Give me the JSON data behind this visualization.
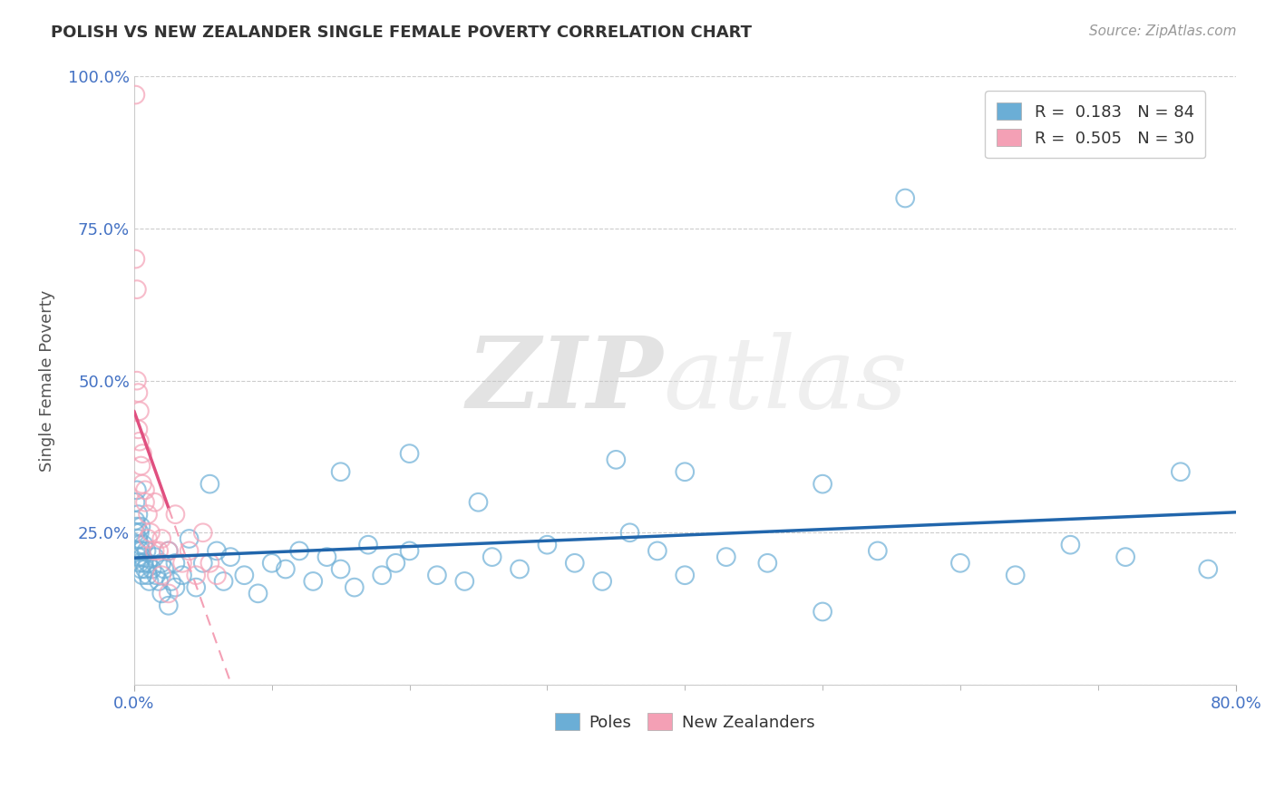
{
  "title": "POLISH VS NEW ZEALANDER SINGLE FEMALE POVERTY CORRELATION CHART",
  "source": "Source: ZipAtlas.com",
  "ylabel": "Single Female Poverty",
  "yticks": [
    0.0,
    0.25,
    0.5,
    0.75,
    1.0
  ],
  "ytick_labels": [
    "",
    "25.0%",
    "50.0%",
    "75.0%",
    "100.0%"
  ],
  "legend_entry1": "R =  0.183   N = 84",
  "legend_entry2": "R =  0.505   N = 30",
  "watermark_zip": "ZIP",
  "watermark_atlas": "atlas",
  "blue_color": "#6baed6",
  "pink_color": "#f4a0b5",
  "blue_line_color": "#2166ac",
  "pink_line_color": "#e05080",
  "pink_dash_color": "#f4a0b5",
  "xlim": [
    0.0,
    0.8
  ],
  "ylim": [
    0.0,
    1.0
  ],
  "poles_x": [
    0.001,
    0.001,
    0.001,
    0.002,
    0.002,
    0.002,
    0.003,
    0.003,
    0.003,
    0.004,
    0.004,
    0.004,
    0.005,
    0.005,
    0.005,
    0.006,
    0.006,
    0.007,
    0.007,
    0.008,
    0.009,
    0.01,
    0.01,
    0.011,
    0.013,
    0.015,
    0.016,
    0.018,
    0.02,
    0.022,
    0.025,
    0.027,
    0.03,
    0.035,
    0.04,
    0.045,
    0.05,
    0.055,
    0.06,
    0.065,
    0.07,
    0.08,
    0.09,
    0.1,
    0.11,
    0.12,
    0.13,
    0.14,
    0.15,
    0.16,
    0.17,
    0.18,
    0.19,
    0.2,
    0.22,
    0.24,
    0.26,
    0.28,
    0.3,
    0.32,
    0.34,
    0.36,
    0.38,
    0.4,
    0.43,
    0.46,
    0.5,
    0.54,
    0.56,
    0.6,
    0.64,
    0.68,
    0.72,
    0.76,
    0.78,
    0.02,
    0.025,
    0.03,
    0.15,
    0.2,
    0.25,
    0.35,
    0.4,
    0.5
  ],
  "poles_y": [
    0.25,
    0.27,
    0.3,
    0.22,
    0.26,
    0.32,
    0.24,
    0.28,
    0.21,
    0.2,
    0.25,
    0.23,
    0.19,
    0.22,
    0.26,
    0.21,
    0.18,
    0.23,
    0.2,
    0.19,
    0.22,
    0.18,
    0.2,
    0.17,
    0.19,
    0.21,
    0.18,
    0.17,
    0.2,
    0.19,
    0.22,
    0.17,
    0.2,
    0.18,
    0.24,
    0.16,
    0.2,
    0.33,
    0.22,
    0.17,
    0.21,
    0.18,
    0.15,
    0.2,
    0.19,
    0.22,
    0.17,
    0.21,
    0.19,
    0.16,
    0.23,
    0.18,
    0.2,
    0.22,
    0.18,
    0.17,
    0.21,
    0.19,
    0.23,
    0.2,
    0.17,
    0.25,
    0.22,
    0.18,
    0.21,
    0.2,
    0.33,
    0.22,
    0.8,
    0.2,
    0.18,
    0.23,
    0.21,
    0.35,
    0.19,
    0.15,
    0.13,
    0.16,
    0.35,
    0.38,
    0.3,
    0.37,
    0.35,
    0.12
  ],
  "nz_x": [
    0.001,
    0.001,
    0.002,
    0.002,
    0.003,
    0.003,
    0.004,
    0.005,
    0.006,
    0.008,
    0.01,
    0.012,
    0.015,
    0.018,
    0.02,
    0.025,
    0.03,
    0.035,
    0.04,
    0.045,
    0.05,
    0.055,
    0.06,
    0.008,
    0.004,
    0.006,
    0.01,
    0.015,
    0.02,
    0.025
  ],
  "nz_y": [
    0.97,
    0.7,
    0.65,
    0.5,
    0.48,
    0.42,
    0.4,
    0.36,
    0.33,
    0.3,
    0.28,
    0.25,
    0.3,
    0.22,
    0.24,
    0.22,
    0.28,
    0.2,
    0.22,
    0.18,
    0.25,
    0.2,
    0.18,
    0.32,
    0.45,
    0.38,
    0.24,
    0.22,
    0.18,
    0.15
  ]
}
